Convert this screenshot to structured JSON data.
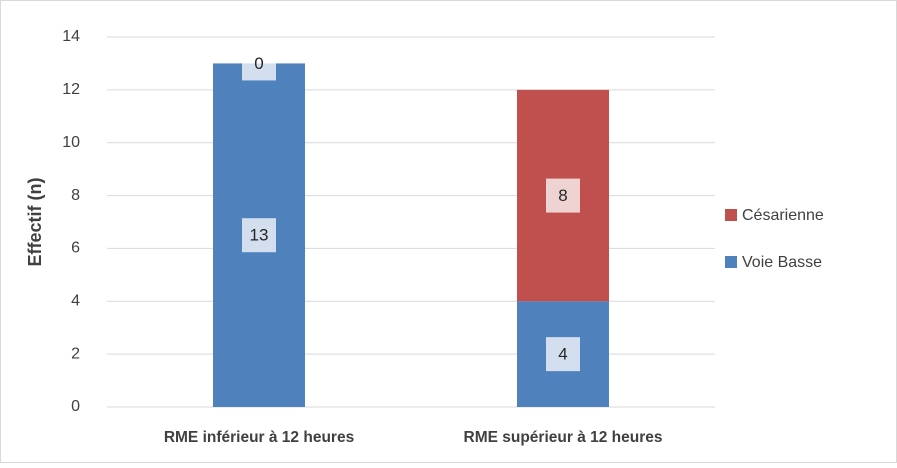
{
  "chart_data": {
    "type": "stacked_bar",
    "y_label": "Effectif  (n)",
    "categories": [
      "RME inférieur à 12 heures",
      "RME supérieur à 12 heures"
    ],
    "series": [
      {
        "name": "Voie Basse",
        "color": "#4f81bd",
        "values": [
          13,
          4
        ]
      },
      {
        "name": "Césarienne",
        "color": "#c0504d",
        "values": [
          0,
          8
        ]
      }
    ],
    "ylim": [
      0,
      14
    ],
    "yticks": [
      0,
      2,
      4,
      6,
      8,
      10,
      12,
      14
    ],
    "grid": true,
    "legend": "right"
  }
}
